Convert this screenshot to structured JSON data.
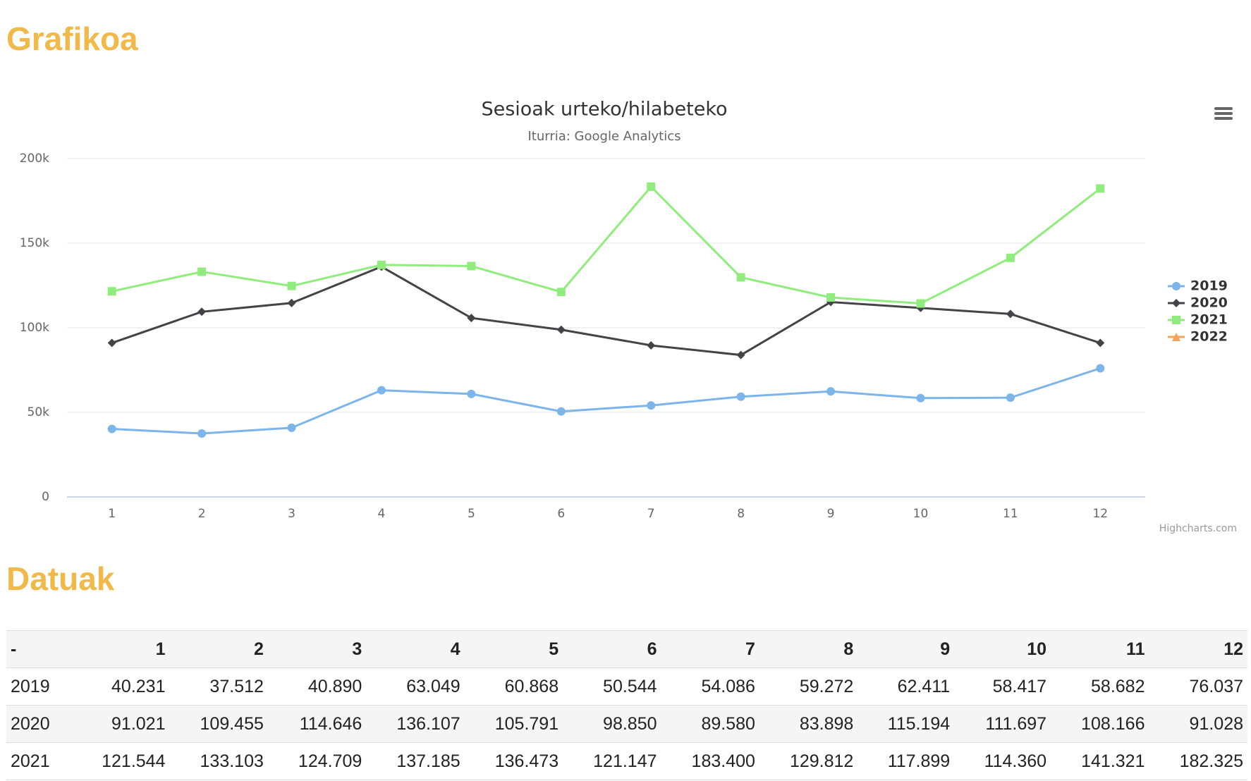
{
  "headings": [
    "Grafikoa",
    "Datuak"
  ],
  "chart_data": {
    "type": "line",
    "title": "Sesioak urteko/hilabeteko",
    "subtitle": "Iturria: Google Analytics",
    "credit": "Highcharts.com",
    "categories": [
      "1",
      "2",
      "3",
      "4",
      "5",
      "6",
      "7",
      "8",
      "9",
      "10",
      "11",
      "12"
    ],
    "series": [
      {
        "name": "2019",
        "color": "#7cb5ec",
        "marker": "circle",
        "values": [
          40231,
          37512,
          40890,
          63049,
          60868,
          50544,
          54086,
          59272,
          62411,
          58417,
          58682,
          76037
        ]
      },
      {
        "name": "2020",
        "color": "#434348",
        "marker": "diamond",
        "values": [
          91021,
          109455,
          114646,
          136107,
          105791,
          98850,
          89580,
          83898,
          115194,
          111697,
          108166,
          91028
        ]
      },
      {
        "name": "2021",
        "color": "#90ed7d",
        "marker": "square",
        "values": [
          121544,
          133103,
          124709,
          137185,
          136473,
          121147,
          183400,
          129812,
          117899,
          114360,
          141321,
          182325
        ]
      },
      {
        "name": "2022",
        "color": "#f7a35c",
        "marker": "triangle",
        "values": [
          null,
          null,
          null,
          null,
          null,
          null,
          null,
          null,
          null,
          null,
          null,
          null
        ]
      }
    ],
    "ylim": [
      0,
      200000
    ],
    "yticks": [
      0,
      {
        "value": 50000,
        "label": "50k"
      },
      {
        "value": 100000,
        "label": "100k"
      },
      {
        "value": 150000,
        "label": "150k"
      },
      {
        "value": 200000,
        "label": "200k"
      }
    ],
    "grid": true,
    "legend": "right"
  },
  "table": {
    "header": [
      "-",
      "1",
      "2",
      "3",
      "4",
      "5",
      "6",
      "7",
      "8",
      "9",
      "10",
      "11",
      "12"
    ],
    "rows": [
      [
        "2019",
        "40.231",
        "37.512",
        "40.890",
        "63.049",
        "60.868",
        "50.544",
        "54.086",
        "59.272",
        "62.411",
        "58.417",
        "58.682",
        "76.037"
      ],
      [
        "2020",
        "91.021",
        "109.455",
        "114.646",
        "136.107",
        "105.791",
        "98.850",
        "89.580",
        "83.898",
        "115.194",
        "111.697",
        "108.166",
        "91.028"
      ],
      [
        "2021",
        "121.544",
        "133.103",
        "124.709",
        "137.185",
        "136.473",
        "121.147",
        "183.400",
        "129.812",
        "117.899",
        "114.360",
        "141.321",
        "182.325"
      ]
    ]
  }
}
